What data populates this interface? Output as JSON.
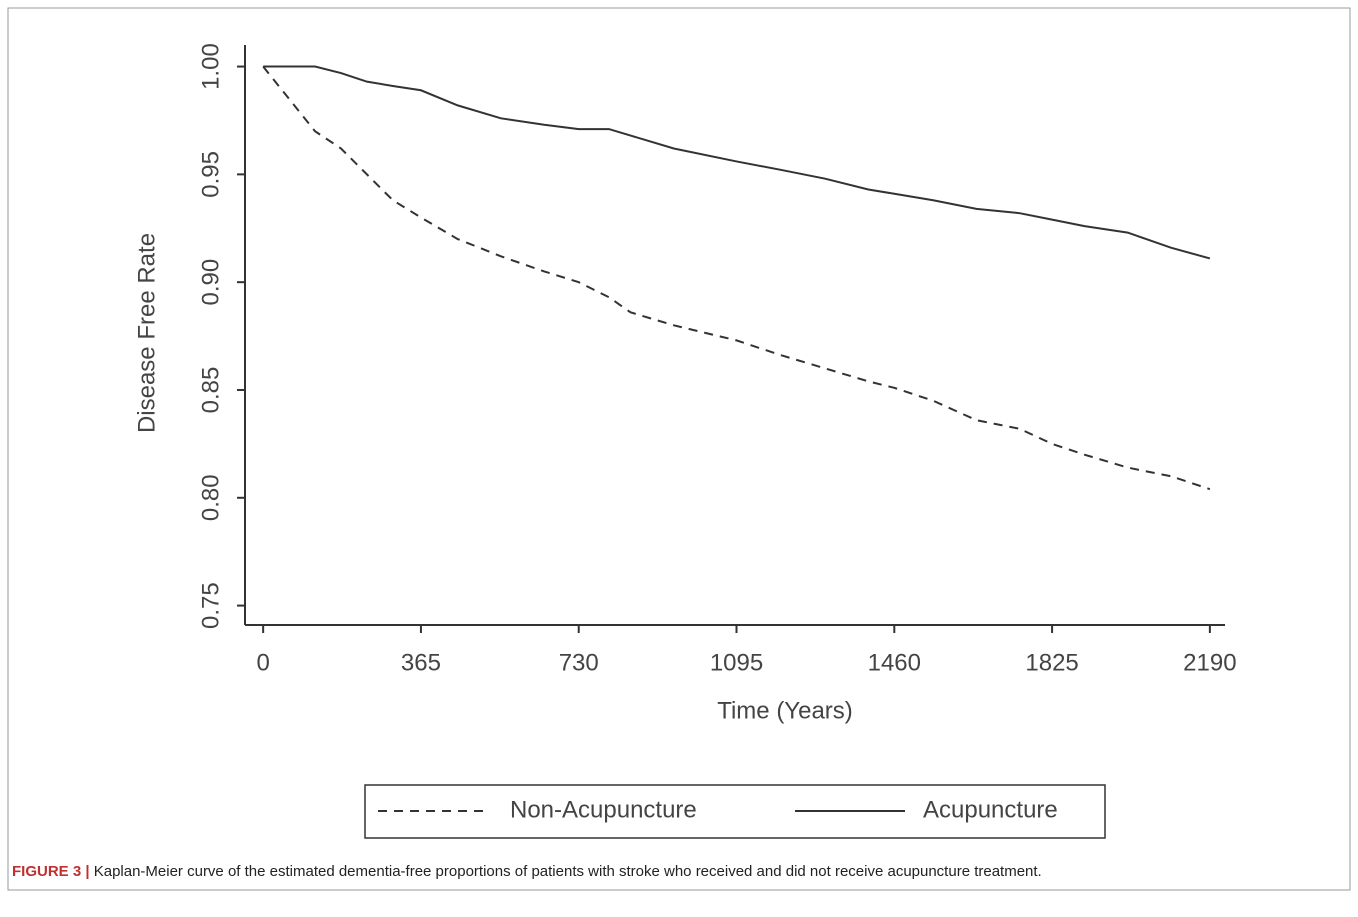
{
  "chart_data": {
    "type": "line",
    "y_label": "Disease Free Rate",
    "x_label": "Time (Years)",
    "caption_label": "FIGURE 3 |",
    "caption": "Kaplan-Meier curve of the estimated dementia-free proportions of patients with stroke who received and did not receive acupuncture treatment.",
    "x": [
      0,
      60,
      120,
      180,
      240,
      300,
      365,
      450,
      550,
      650,
      730,
      800,
      850,
      950,
      1095,
      1200,
      1300,
      1400,
      1460,
      1550,
      1650,
      1750,
      1825,
      1900,
      2000,
      2100,
      2190
    ],
    "series": [
      {
        "name": "Non-Acupuncture",
        "color": "#333333",
        "line_style": "dashed",
        "values": [
          1.0,
          0.985,
          0.97,
          0.962,
          0.95,
          0.938,
          0.93,
          0.92,
          0.912,
          0.905,
          0.9,
          0.893,
          0.886,
          0.88,
          0.873,
          0.866,
          0.86,
          0.854,
          0.851,
          0.845,
          0.836,
          0.832,
          0.825,
          0.82,
          0.814,
          0.81,
          0.804
        ]
      },
      {
        "name": "Acupuncture",
        "color": "#333333",
        "line_style": "solid",
        "values": [
          1.0,
          1.0,
          1.0,
          0.997,
          0.993,
          0.991,
          0.989,
          0.982,
          0.976,
          0.973,
          0.971,
          0.971,
          0.968,
          0.962,
          0.956,
          0.952,
          0.948,
          0.943,
          0.941,
          0.938,
          0.934,
          0.932,
          0.929,
          0.926,
          0.923,
          0.916,
          0.911
        ]
      }
    ],
    "xlim": [
      -42,
      2225
    ],
    "xticks": [
      0,
      365,
      730,
      1095,
      1460,
      1825,
      2190
    ],
    "ylim": [
      0.741,
      1.01
    ],
    "yticks": [
      {
        "value": 1,
        "label": "1.00"
      },
      0.95,
      {
        "value": 0.9,
        "label": "0.90"
      },
      0.85,
      {
        "value": 0.8,
        "label": "0.80"
      },
      0.75
    ],
    "grid": false,
    "legend": "bottom"
  }
}
